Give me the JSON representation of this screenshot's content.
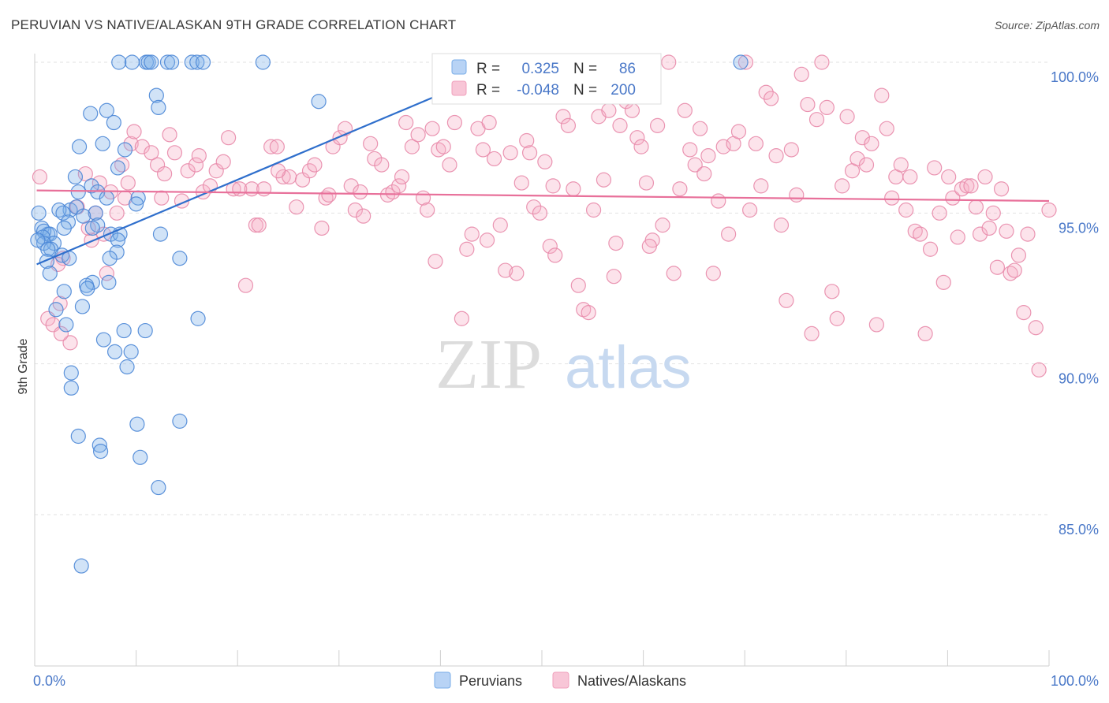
{
  "title": "PERUVIAN VS NATIVE/ALASKAN 9TH GRADE CORRELATION CHART",
  "source": "Source: ZipAtlas.com",
  "watermark": {
    "zip": "ZIP",
    "atlas": "atlas"
  },
  "chart_data": {
    "type": "scatter",
    "ylabel": "9th Grade",
    "xlim": [
      0,
      100
    ],
    "ylim": [
      80.5,
      100.7
    ],
    "x_tick_labels": [
      {
        "value": 0,
        "label": "0.0%"
      },
      {
        "value": 100,
        "label": "100.0%"
      }
    ],
    "y_ticks": [
      {
        "value": 100,
        "label": "100.0%"
      },
      {
        "value": 95,
        "label": "95.0%"
      },
      {
        "value": 90,
        "label": "90.0%"
      },
      {
        "value": 85,
        "label": "85.0%"
      }
    ],
    "grid": true,
    "legend_top": {
      "rows": [
        {
          "series": "Peruvians",
          "r_label": "R =",
          "r_value": "0.325",
          "n_label": "N =",
          "n_value": "86"
        },
        {
          "series": "Natives/Alaskans",
          "r_label": "R =",
          "r_value": "-0.048",
          "n_label": "N =",
          "n_value": "200"
        }
      ]
    },
    "series": [
      {
        "name": "Peruvians",
        "color": "#7aaee8",
        "stroke": "#4a86d6",
        "trend_color": "#2f6fcc",
        "trend": {
          "x0": 0.2,
          "y0": 93.3,
          "x1": 47.5,
          "y1": 100.0
        },
        "points": [
          [
            8.3,
            100
          ],
          [
            9.6,
            100
          ],
          [
            11,
            100
          ],
          [
            11.2,
            100
          ],
          [
            11.5,
            100
          ],
          [
            13.1,
            100
          ],
          [
            13.5,
            100
          ],
          [
            15.5,
            100
          ],
          [
            16,
            100
          ],
          [
            16.6,
            100
          ],
          [
            22.5,
            100
          ],
          [
            69.6,
            100
          ],
          [
            12,
            98.9
          ],
          [
            12.2,
            98.5
          ],
          [
            7.1,
            98.4
          ],
          [
            5.5,
            98.3
          ],
          [
            28,
            98.7
          ],
          [
            7.8,
            98
          ],
          [
            6.7,
            97.3
          ],
          [
            4.4,
            97.2
          ],
          [
            8.9,
            97.1
          ],
          [
            8.2,
            96.5
          ],
          [
            4,
            96.2
          ],
          [
            5.6,
            95.9
          ],
          [
            4.3,
            95.7
          ],
          [
            6.2,
            95.7
          ],
          [
            0.4,
            95
          ],
          [
            7.1,
            95.5
          ],
          [
            10.2,
            95.5
          ],
          [
            10,
            95.3
          ],
          [
            3.5,
            95.1
          ],
          [
            4.1,
            95.2
          ],
          [
            2.4,
            95.1
          ],
          [
            6,
            95
          ],
          [
            2.8,
            95
          ],
          [
            4.8,
            94.9
          ],
          [
            3.3,
            94.7
          ],
          [
            2.9,
            94.5
          ],
          [
            0.7,
            94.5
          ],
          [
            1.3,
            94.3
          ],
          [
            0.9,
            94.4
          ],
          [
            1.5,
            94.3
          ],
          [
            0.8,
            94.2
          ],
          [
            6.2,
            94.6
          ],
          [
            7.5,
            94.3
          ],
          [
            8.4,
            94.3
          ],
          [
            12.4,
            94.3
          ],
          [
            5.7,
            94.5
          ],
          [
            1.9,
            94
          ],
          [
            0.9,
            94
          ],
          [
            1.6,
            93.8
          ],
          [
            1.3,
            93.8
          ],
          [
            8.2,
            94.1
          ],
          [
            8.1,
            93.7
          ],
          [
            2.7,
            93.6
          ],
          [
            3.4,
            93.5
          ],
          [
            1.2,
            93.4
          ],
          [
            7.4,
            93.5
          ],
          [
            14.3,
            93.5
          ],
          [
            1.5,
            93
          ],
          [
            5.7,
            92.7
          ],
          [
            7.3,
            92.7
          ],
          [
            5.1,
            92.6
          ],
          [
            5.2,
            92.5
          ],
          [
            2.9,
            92.4
          ],
          [
            2.1,
            91.8
          ],
          [
            4.7,
            91.9
          ],
          [
            3.1,
            91.3
          ],
          [
            16.1,
            91.5
          ],
          [
            8.8,
            91.1
          ],
          [
            10.9,
            91.1
          ],
          [
            6.8,
            90.8
          ],
          [
            7.9,
            90.4
          ],
          [
            9.5,
            90.4
          ],
          [
            3.6,
            89.7
          ],
          [
            3.6,
            89.2
          ],
          [
            10.1,
            88
          ],
          [
            14.3,
            88.1
          ],
          [
            4.3,
            87.6
          ],
          [
            6.4,
            87.3
          ],
          [
            6.5,
            87.1
          ],
          [
            10.4,
            86.9
          ],
          [
            12.2,
            85.9
          ],
          [
            4.6,
            83.3
          ],
          [
            9.1,
            89.9
          ],
          [
            0.3,
            94.1
          ]
        ]
      },
      {
        "name": "Natives/Alaskans",
        "color": "#f5aec6",
        "stroke": "#e88aaa",
        "trend_color": "#e8709a",
        "trend": {
          "x0": 0.2,
          "y0": 95.75,
          "x1": 100,
          "y1": 95.4
        },
        "points": [
          [
            0.5,
            96.2
          ],
          [
            1.3,
            91.5
          ],
          [
            2.5,
            92
          ],
          [
            2.8,
            93.5
          ],
          [
            3.5,
            90.7
          ],
          [
            4.2,
            95.2
          ],
          [
            5,
            96.3
          ],
          [
            5.6,
            94.1
          ],
          [
            6,
            95
          ],
          [
            6.4,
            96
          ],
          [
            7.1,
            93
          ],
          [
            7.5,
            95.7
          ],
          [
            8.1,
            95
          ],
          [
            8.6,
            96.6
          ],
          [
            9.2,
            96
          ],
          [
            9.5,
            97.3
          ],
          [
            9.8,
            97.7
          ],
          [
            10.6,
            97.2
          ],
          [
            11.5,
            97
          ],
          [
            12.1,
            96.6
          ],
          [
            12.8,
            96.3
          ],
          [
            13.3,
            97.6
          ],
          [
            13.8,
            97
          ],
          [
            14.5,
            95.4
          ],
          [
            15.1,
            96.4
          ],
          [
            15.9,
            96.6
          ],
          [
            16.2,
            96.9
          ],
          [
            16.6,
            95.7
          ],
          [
            17.3,
            95.9
          ],
          [
            17.9,
            96.4
          ],
          [
            18.6,
            96.7
          ],
          [
            19.1,
            97.5
          ],
          [
            19.6,
            95.8
          ],
          [
            20.2,
            95.8
          ],
          [
            20.8,
            92.6
          ],
          [
            21.4,
            95.8
          ],
          [
            21.8,
            94.6
          ],
          [
            22.1,
            94.6
          ],
          [
            22.6,
            95.8
          ],
          [
            23.3,
            97.2
          ],
          [
            23.9,
            97.2
          ],
          [
            24.5,
            96.2
          ],
          [
            25.1,
            96.2
          ],
          [
            25.8,
            95.2
          ],
          [
            26.4,
            96.1
          ],
          [
            27.1,
            96.4
          ],
          [
            27.6,
            96.6
          ],
          [
            28.3,
            94.5
          ],
          [
            28.7,
            95.5
          ],
          [
            29.4,
            97.2
          ],
          [
            30.1,
            97.5
          ],
          [
            30.6,
            97.8
          ],
          [
            31.2,
            95.9
          ],
          [
            31.6,
            95.1
          ],
          [
            32.1,
            95.7
          ],
          [
            32.4,
            94.9
          ],
          [
            33.1,
            97.3
          ],
          [
            33.5,
            96.8
          ],
          [
            34.2,
            96.6
          ],
          [
            34.8,
            95.6
          ],
          [
            35.3,
            95.7
          ],
          [
            35.9,
            95.9
          ],
          [
            36.6,
            98
          ],
          [
            37.2,
            97.2
          ],
          [
            37.8,
            97.6
          ],
          [
            38.3,
            95.5
          ],
          [
            38.7,
            95.1
          ],
          [
            39.2,
            97.8
          ],
          [
            39.8,
            97.1
          ],
          [
            40.3,
            97.2
          ],
          [
            40.9,
            96.6
          ],
          [
            41.4,
            98
          ],
          [
            42.1,
            91.5
          ],
          [
            42.6,
            93.8
          ],
          [
            43.1,
            94.3
          ],
          [
            43.7,
            97.8
          ],
          [
            44.2,
            97.1
          ],
          [
            44.8,
            98
          ],
          [
            45.3,
            96.8
          ],
          [
            45.9,
            94.6
          ],
          [
            46.4,
            93.1
          ],
          [
            46.9,
            97
          ],
          [
            47.5,
            93
          ],
          [
            48,
            96
          ],
          [
            48.5,
            97.4
          ],
          [
            49.2,
            95.2
          ],
          [
            49.8,
            95
          ],
          [
            50.3,
            96.7
          ],
          [
            50.8,
            93.9
          ],
          [
            51.3,
            93.6
          ],
          [
            52.1,
            98.2
          ],
          [
            52.6,
            97.9
          ],
          [
            53.1,
            95.8
          ],
          [
            53.6,
            92.6
          ],
          [
            54.1,
            91.8
          ],
          [
            54.6,
            91.7
          ],
          [
            55.1,
            95.1
          ],
          [
            55.6,
            98.2
          ],
          [
            56.1,
            96.1
          ],
          [
            56.6,
            98.4
          ],
          [
            57.1,
            92.9
          ],
          [
            57.7,
            97.9
          ],
          [
            58.3,
            98.7
          ],
          [
            58.9,
            98.4
          ],
          [
            59.4,
            97.5
          ],
          [
            59.8,
            97.2
          ],
          [
            60.3,
            96
          ],
          [
            60.9,
            94.1
          ],
          [
            61.4,
            97.9
          ],
          [
            61.9,
            94.6
          ],
          [
            62.5,
            100
          ],
          [
            63,
            93
          ],
          [
            63.6,
            95.8
          ],
          [
            64.1,
            98.4
          ],
          [
            64.6,
            97.1
          ],
          [
            65.1,
            96.6
          ],
          [
            65.6,
            97.8
          ],
          [
            66,
            96.3
          ],
          [
            66.4,
            96.9
          ],
          [
            66.9,
            93
          ],
          [
            67.4,
            95.4
          ],
          [
            67.9,
            97.2
          ],
          [
            68.4,
            94.3
          ],
          [
            68.9,
            97.3
          ],
          [
            69.4,
            97.7
          ],
          [
            70.1,
            100
          ],
          [
            70.5,
            95.1
          ],
          [
            71.1,
            97.3
          ],
          [
            71.6,
            95.9
          ],
          [
            72.1,
            99
          ],
          [
            72.6,
            98.8
          ],
          [
            73.1,
            96.9
          ],
          [
            73.6,
            94.6
          ],
          [
            74.1,
            92.1
          ],
          [
            74.6,
            97.1
          ],
          [
            75.1,
            95.6
          ],
          [
            75.6,
            99.6
          ],
          [
            76.2,
            98.6
          ],
          [
            76.6,
            91
          ],
          [
            77.1,
            98.1
          ],
          [
            77.6,
            100
          ],
          [
            78.1,
            98.5
          ],
          [
            78.6,
            92.4
          ],
          [
            79.1,
            91.5
          ],
          [
            79.6,
            95.9
          ],
          [
            80.1,
            98.2
          ],
          [
            80.6,
            96.4
          ],
          [
            81.1,
            96.8
          ],
          [
            81.6,
            97.5
          ],
          [
            82,
            96.6
          ],
          [
            82.5,
            97.3
          ],
          [
            83,
            91.3
          ],
          [
            83.5,
            98.9
          ],
          [
            84,
            97.8
          ],
          [
            84.5,
            95.5
          ],
          [
            84.9,
            96.2
          ],
          [
            85.4,
            96.6
          ],
          [
            85.9,
            95.1
          ],
          [
            86.3,
            96.2
          ],
          [
            86.8,
            94.4
          ],
          [
            87.3,
            94.3
          ],
          [
            87.8,
            91
          ],
          [
            88.3,
            93.8
          ],
          [
            88.7,
            96.5
          ],
          [
            89.2,
            95
          ],
          [
            89.6,
            92.7
          ],
          [
            90.1,
            96.2
          ],
          [
            90.5,
            95.5
          ],
          [
            91,
            94.2
          ],
          [
            91.4,
            95.8
          ],
          [
            91.9,
            95.9
          ],
          [
            92.3,
            95.9
          ],
          [
            92.8,
            95.2
          ],
          [
            93.2,
            94.3
          ],
          [
            93.7,
            96.2
          ],
          [
            94.1,
            94.5
          ],
          [
            94.5,
            95
          ],
          [
            94.9,
            93.2
          ],
          [
            95.3,
            95.8
          ],
          [
            95.8,
            94.4
          ],
          [
            96.2,
            93
          ],
          [
            96.6,
            93.1
          ],
          [
            97,
            93.6
          ],
          [
            97.5,
            91.7
          ],
          [
            97.9,
            94.3
          ],
          [
            98.7,
            91.2
          ],
          [
            99,
            89.8
          ],
          [
            100,
            95.1
          ],
          [
            1.8,
            91.3
          ],
          [
            2.3,
            93.3
          ],
          [
            2.6,
            91
          ],
          [
            8.9,
            95.5
          ],
          [
            5.3,
            94.5
          ],
          [
            6.8,
            94.3
          ],
          [
            12.5,
            95.5
          ],
          [
            24,
            96.4
          ],
          [
            29,
            95.6
          ],
          [
            36.2,
            96.2
          ],
          [
            39.5,
            93.4
          ],
          [
            44.6,
            94.1
          ],
          [
            48.8,
            97
          ],
          [
            51.1,
            95.9
          ],
          [
            57.3,
            94
          ],
          [
            60.6,
            93.9
          ]
        ]
      }
    ]
  }
}
